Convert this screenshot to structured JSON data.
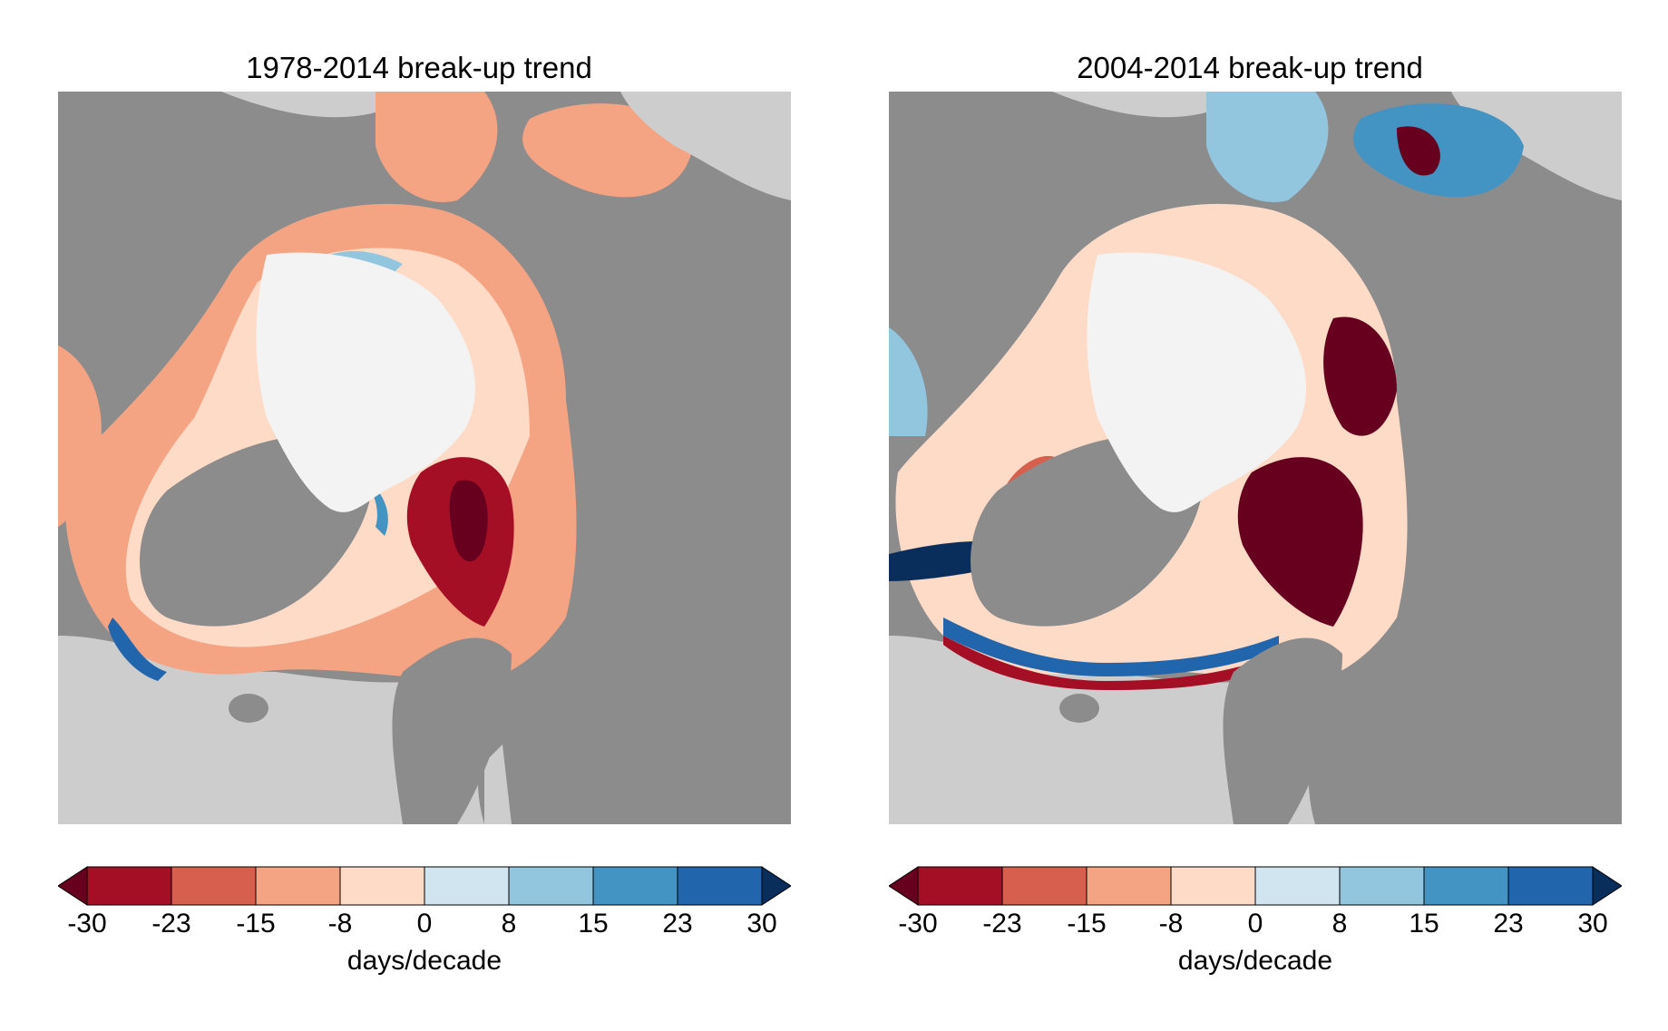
{
  "panels": [
    {
      "title": "1978-2014 break-up trend",
      "legend_label": "days/decade",
      "ticks": [
        "-30",
        "-23",
        "-15",
        "-8",
        "0",
        "8",
        "15",
        "23",
        "30"
      ]
    },
    {
      "title": "2004-2014 break-up trend",
      "legend_label": "days/decade",
      "ticks": [
        "-30",
        "-23",
        "-15",
        "-8",
        "0",
        "8",
        "15",
        "23",
        "30"
      ]
    }
  ],
  "colorbar": {
    "bins": [
      "#a50f25",
      "#d6604d",
      "#f4a482",
      "#fddbc7",
      "#d1e5f0",
      "#92c5de",
      "#4393c3",
      "#2166ac"
    ],
    "under": "#67001f",
    "over": "#0a2e5c"
  },
  "map_colors": {
    "land": "#8c8c8c",
    "outer_ocean": "#cdcdcd",
    "perennial_ice": "#f3f3f3",
    "coastline": "#ffffff"
  }
}
